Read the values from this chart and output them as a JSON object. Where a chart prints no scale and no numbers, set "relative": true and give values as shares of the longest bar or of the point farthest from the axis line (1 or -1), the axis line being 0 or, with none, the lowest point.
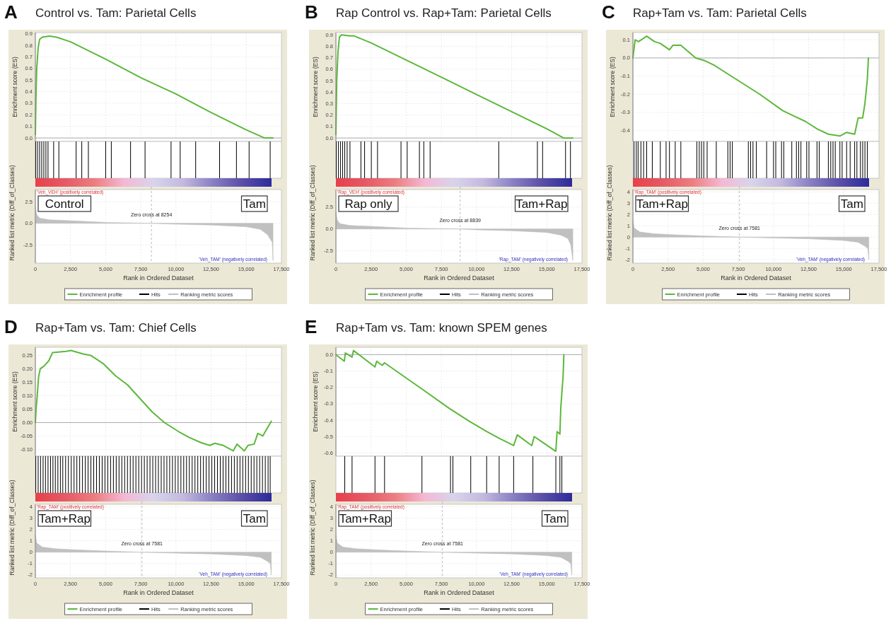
{
  "chart_data": [
    {
      "type": "line",
      "title": "Control vs. Tam: Parietal Cells",
      "annotations": [
        "A"
      ],
      "ylabel": "Enrichment score (ES)",
      "xlim": [
        0,
        17500
      ],
      "xticks": [
        0,
        2500,
        5000,
        7500,
        10000,
        12500,
        15000,
        17500
      ],
      "ylim": [
        -0.03,
        0.91
      ],
      "yticks": [
        {
          "value": 0,
          "label": "0.0"
        },
        0.1,
        0.2,
        0.3,
        0.4,
        0.5,
        0.6,
        0.7,
        0.8,
        0.9
      ],
      "grid": true,
      "tick_labels": "y",
      "legend": "bottom",
      "ref_lines": [
        {
          "axis": "y",
          "value": 0
        }
      ],
      "series": [
        {
          "name": "Enrichment profile",
          "color": "#5cb83a",
          "x": [
            0,
            50,
            100,
            200,
            300,
            500,
            1000,
            1500,
            2500,
            5000,
            7500,
            10000,
            12500,
            15000,
            16300,
            16900
          ],
          "values": [
            0.03,
            0.4,
            0.6,
            0.78,
            0.85,
            0.87,
            0.88,
            0.87,
            0.83,
            0.68,
            0.52,
            0.38,
            0.22,
            0.07,
            0.0,
            0.0
          ]
        }
      ]
    },
    {
      "type": "bar",
      "relative": true,
      "xlim": [
        0,
        17500
      ],
      "tick_labels": false,
      "legend": "bottom",
      "series": [
        {
          "name": "Hits",
          "color": "#000000",
          "x": [
            20,
            150,
            300,
            450,
            600,
            750,
            900,
            1300,
            1670,
            2900,
            3300,
            3770,
            5000,
            5400,
            6770,
            7800,
            9650,
            10300,
            11400,
            13100,
            14300,
            15200,
            16700
          ],
          "values": [
            1,
            1,
            1,
            1,
            1,
            1,
            1,
            1,
            1,
            1,
            1,
            1,
            1,
            1,
            1,
            1,
            1,
            1,
            1,
            1,
            1,
            1,
            1
          ]
        }
      ]
    },
    {
      "type": "area",
      "xlabel": "Rank in Ordered Dataset",
      "ylabel": "Ranked list metric (Diff_of_Classes)",
      "xlim": [
        0,
        17500
      ],
      "xticks": [
        0,
        {
          "value": 2500,
          "label": "2,500"
        },
        {
          "value": 5000,
          "label": "5,000"
        },
        {
          "value": 7500,
          "label": "7,500"
        },
        {
          "value": 10000,
          "label": "10,000"
        },
        {
          "value": 12500,
          "label": "12,500"
        },
        {
          "value": 15000,
          "label": "15,000"
        },
        {
          "value": 17500,
          "label": "17,500"
        }
      ],
      "ylim": [
        -4.6,
        3.9
      ],
      "yticks": [
        {
          "value": -2.5,
          "label": "-2.5"
        },
        {
          "value": 0,
          "label": "0.0"
        },
        2.5
      ],
      "grid": true,
      "legend": "bottom",
      "ref_lines": [
        {
          "axis": "x",
          "value": 8254,
          "label": "Zero cross at 8254",
          "line_style": "dashed"
        }
      ],
      "annotations": [
        "Control",
        "Tam",
        "'Veh_VEH' (positively correlated)",
        "'Veh_TAM' (negatively correlated)"
      ],
      "series": [
        {
          "name": "Ranking metric scores",
          "color": "#c0c0c0",
          "x": [
            0,
            100,
            300,
            1000,
            2500,
            5000,
            8254,
            10000,
            12500,
            15000,
            16000,
            16500,
            16850,
            16900
          ],
          "values": [
            2.0,
            1.0,
            0.6,
            0.4,
            0.3,
            0.1,
            0,
            -0.1,
            -0.2,
            -0.4,
            -0.7,
            -1.3,
            -2.2,
            -4.3
          ]
        }
      ]
    },
    {
      "type": "line",
      "title": "Rap Control vs. Rap+Tam: Parietal Cells",
      "annotations": [
        "B"
      ],
      "ylabel": "Enrichment score (ES)",
      "xlim": [
        0,
        17500
      ],
      "xticks": [
        0,
        2500,
        5000,
        7500,
        10000,
        12500,
        15000,
        17500
      ],
      "ylim": [
        -0.03,
        0.92
      ],
      "yticks": [
        {
          "value": 0,
          "label": "0.0"
        },
        0.1,
        0.2,
        0.3,
        0.4,
        0.5,
        0.6,
        0.7,
        0.8,
        0.9
      ],
      "grid": true,
      "tick_labels": "y",
      "legend": "bottom",
      "ref_lines": [
        {
          "axis": "y",
          "value": 0
        }
      ],
      "series": [
        {
          "name": "Enrichment profile",
          "color": "#5cb83a",
          "x": [
            0,
            60,
            150,
            250,
            400,
            1000,
            1300,
            2500,
            5000,
            7500,
            10000,
            12500,
            15000,
            16200,
            16850
          ],
          "values": [
            0.03,
            0.5,
            0.75,
            0.88,
            0.9,
            0.89,
            0.89,
            0.83,
            0.68,
            0.53,
            0.38,
            0.23,
            0.08,
            0.0,
            0.0
          ]
        }
      ]
    },
    {
      "type": "bar",
      "relative": true,
      "xlim": [
        0,
        17500
      ],
      "tick_labels": false,
      "legend": "bottom",
      "series": [
        {
          "name": "Hits",
          "color": "#000000",
          "x": [
            30,
            180,
            330,
            480,
            630,
            800,
            1000,
            1780,
            2040,
            2520,
            2960,
            4630,
            5070,
            5940,
            6250,
            6700,
            11580,
            14330,
            14700,
            16330,
            16680
          ],
          "values": [
            1,
            1,
            1,
            1,
            1,
            1,
            1,
            1,
            1,
            1,
            1,
            1,
            1,
            1,
            1,
            1,
            1,
            1,
            1,
            1,
            1
          ]
        }
      ]
    },
    {
      "type": "area",
      "xlabel": "Rank in Ordered Dataset",
      "ylabel": "Ranked list metric (Diff_of_Classes)",
      "xlim": [
        0,
        17500
      ],
      "xticks": [
        0,
        {
          "value": 2500,
          "label": "2,500"
        },
        {
          "value": 5000,
          "label": "5,000"
        },
        {
          "value": 7500,
          "label": "7,500"
        },
        {
          "value": 10000,
          "label": "10,000"
        },
        {
          "value": 12500,
          "label": "12,500"
        },
        {
          "value": 15000,
          "label": "15,000"
        },
        {
          "value": 17500,
          "label": "17,500"
        }
      ],
      "ylim": [
        -3.9,
        4.5
      ],
      "yticks": [
        {
          "value": -2.5,
          "label": "-2.5"
        },
        {
          "value": 0,
          "label": "0.0"
        },
        2.5
      ],
      "grid": true,
      "legend": "bottom",
      "ref_lines": [
        {
          "axis": "x",
          "value": 8839,
          "label": "Zero cross at 8839",
          "line_style": "dashed"
        }
      ],
      "annotations": [
        "Rap only",
        "Tam+Rap",
        "'Rap_VEH' (positively correlated)",
        "'Rap_TAM' (negatively correlated)"
      ],
      "series": [
        {
          "name": "Ranking metric scores",
          "color": "#c0c0c0",
          "x": [
            0,
            100,
            300,
            1000,
            2500,
            5000,
            8839,
            10000,
            12500,
            15000,
            16000,
            16500,
            16700,
            16850
          ],
          "values": [
            2.0,
            1.0,
            0.6,
            0.4,
            0.3,
            0.1,
            0,
            -0.1,
            -0.2,
            -0.4,
            -0.7,
            -1.1,
            -1.8,
            -3.6
          ]
        }
      ]
    },
    {
      "type": "line",
      "title": "Rap+Tam vs. Tam: Parietal Cells",
      "annotations": [
        "C"
      ],
      "ylabel": "Enrichment score (ES)",
      "xlim": [
        0,
        17500
      ],
      "xticks": [
        0,
        2500,
        5000,
        7500,
        10000,
        12500,
        15000,
        17500
      ],
      "ylim": [
        -0.46,
        0.14
      ],
      "yticks": [
        -0.4,
        -0.3,
        -0.2,
        -0.1,
        {
          "value": 0,
          "label": "0.0"
        },
        0.1
      ],
      "grid": true,
      "tick_labels": "y",
      "legend": "bottom",
      "ref_lines": [
        {
          "axis": "y",
          "value": 0
        }
      ],
      "series": [
        {
          "name": "Enrichment profile",
          "color": "#5cb83a",
          "x": [
            0,
            160,
            400,
            980,
            1540,
            1950,
            2600,
            2850,
            3170,
            3410,
            4470,
            5120,
            5770,
            7400,
            9020,
            10650,
            11460,
            12280,
            13090,
            13900,
            14720,
            15200,
            15770,
            16020,
            16340,
            16500,
            16670,
            16750
          ],
          "values": [
            0.0,
            0.1,
            0.09,
            0.12,
            0.09,
            0.08,
            0.045,
            0.07,
            0.07,
            0.07,
            0.0,
            -0.015,
            -0.04,
            -0.12,
            -0.2,
            -0.29,
            -0.32,
            -0.35,
            -0.39,
            -0.42,
            -0.43,
            -0.41,
            -0.42,
            -0.33,
            -0.33,
            -0.25,
            -0.12,
            0.0
          ]
        }
      ]
    },
    {
      "type": "bar",
      "relative": true,
      "xlim": [
        0,
        17500
      ],
      "tick_labels": false,
      "legend": "bottom",
      "series": [
        {
          "name": "Hits",
          "color": "#000000",
          "x": [
            80,
            240,
            370,
            570,
            760,
            980,
            1380,
            1950,
            2360,
            2600,
            3010,
            3410,
            4550,
            4720,
            4880,
            5040,
            5280,
            5930,
            6750,
            6910,
            7070,
            8210,
            8370,
            8540,
            8780,
            9510,
            10000,
            10160,
            10570,
            10730,
            11300,
            11630,
            11790,
            11950,
            12360,
            12520,
            13090,
            13250,
            13900,
            14070,
            14230,
            14390,
            14720,
            14880,
            15200,
            15450,
            15770,
            15930,
            16180,
            16340,
            16500,
            16670
          ],
          "values": [
            1,
            1,
            1,
            1,
            1,
            1,
            1,
            1,
            1,
            1,
            1,
            1,
            1,
            1,
            1,
            1,
            1,
            1,
            1,
            1,
            1,
            1,
            1,
            1,
            1,
            1,
            1,
            1,
            1,
            1,
            1,
            1,
            1,
            1,
            1,
            1,
            1,
            1,
            1,
            1,
            1,
            1,
            1,
            1,
            1,
            1,
            1,
            1,
            1,
            1,
            1,
            1
          ]
        }
      ]
    },
    {
      "type": "area",
      "xlabel": "Rank in Ordered Dataset",
      "ylabel": "Ranked list metric (Diff_of_Classes)",
      "xlim": [
        0,
        17500
      ],
      "xticks": [
        0,
        {
          "value": 2500,
          "label": "2,500"
        },
        {
          "value": 5000,
          "label": "5,000"
        },
        {
          "value": 7500,
          "label": "7,500"
        },
        {
          "value": 10000,
          "label": "10,000"
        },
        {
          "value": 12500,
          "label": "12,500"
        },
        {
          "value": 15000,
          "label": "15,000"
        },
        {
          "value": 17500,
          "label": "17,500"
        }
      ],
      "ylim": [
        -2.3,
        4.2
      ],
      "yticks": [
        -2,
        -1,
        0,
        1,
        2,
        3,
        4
      ],
      "grid": true,
      "legend": "bottom",
      "ref_lines": [
        {
          "axis": "x",
          "value": 7581,
          "label": "Zero cross at 7581",
          "line_style": "dashed"
        }
      ],
      "annotations": [
        "Tam+Rap",
        "Tam",
        "'Rap_TAM' (positively correlated)",
        "'Veh_TAM' (negatively correlated)"
      ],
      "series": [
        {
          "name": "Ranking metric scores",
          "color": "#c0c0c0",
          "x": [
            0,
            100,
            500,
            1500,
            3000,
            5000,
            7581,
            10000,
            12500,
            15000,
            16000,
            16500,
            16700,
            16780
          ],
          "values": [
            1.5,
            0.8,
            0.45,
            0.3,
            0.2,
            0.1,
            0,
            -0.08,
            -0.15,
            -0.3,
            -0.45,
            -0.8,
            -1.0,
            -2.0
          ]
        }
      ]
    },
    {
      "type": "line",
      "title": "Rap+Tam vs. Tam: Chief Cells",
      "annotations": [
        "D"
      ],
      "ylabel": "Enrichment score (ES)",
      "xlim": [
        0,
        17500
      ],
      "xticks": [
        0,
        2500,
        5000,
        7500,
        10000,
        12500,
        15000,
        17500
      ],
      "ylim": [
        -0.125,
        0.28
      ],
      "yticks": [
        {
          "value": -0.1,
          "label": "-0.10"
        },
        {
          "value": -0.05,
          "label": "-0.05"
        },
        {
          "value": 0,
          "label": "0.00"
        },
        {
          "value": 0.05,
          "label": "0.05"
        },
        {
          "value": 0.1,
          "label": "0.10"
        },
        0.15,
        {
          "value": 0.2,
          "label": "0.20"
        },
        0.25
      ],
      "grid": true,
      "tick_labels": "y",
      "legend": "bottom",
      "ref_lines": [
        {
          "axis": "y",
          "value": 0
        }
      ],
      "series": [
        {
          "name": "Enrichment profile",
          "color": "#5cb83a",
          "x": [
            0,
            50,
            120,
            230,
            350,
            610,
            960,
            1220,
            2190,
            2530,
            3410,
            3930,
            4810,
            5680,
            6560,
            7430,
            8300,
            9180,
            10230,
            10930,
            11800,
            12410,
            12760,
            13370,
            14070,
            14340,
            14860,
            15120,
            15560,
            15820,
            16170,
            16780
          ],
          "values": [
            0,
            0.05,
            0.09,
            0.17,
            0.2,
            0.21,
            0.23,
            0.26,
            0.265,
            0.268,
            0.255,
            0.25,
            0.22,
            0.175,
            0.14,
            0.09,
            0.04,
            0.0,
            -0.035,
            -0.055,
            -0.075,
            -0.085,
            -0.077,
            -0.085,
            -0.105,
            -0.08,
            -0.105,
            -0.085,
            -0.08,
            -0.04,
            -0.05,
            0.005
          ]
        }
      ]
    },
    {
      "type": "bar",
      "relative": true,
      "xlim": [
        0,
        17500
      ],
      "tick_labels": false,
      "legend": "bottom",
      "series": [
        {
          "name": "Hits",
          "color": "#000000",
          "x": [
            30,
            200,
            370,
            550,
            720,
            900,
            1080,
            1250,
            1420,
            1600,
            1780,
            1950,
            2150,
            2350,
            2550,
            2750,
            2950,
            3150,
            3350,
            3550,
            3750,
            3950,
            4150,
            4350,
            4550,
            4750,
            4950,
            5150,
            5350,
            5550,
            5750,
            5950,
            6150,
            6350,
            6550,
            6750,
            6950,
            7150,
            7350,
            7550,
            7750,
            7950,
            8150,
            8350,
            8550,
            8750,
            8950,
            9150,
            9350,
            9550,
            9750,
            9950,
            10150,
            10350,
            10550,
            10750,
            10950,
            11150,
            11350,
            11550,
            11750,
            11950,
            12150,
            12350,
            12550,
            12750,
            12950,
            13150,
            13350,
            13550,
            13750,
            13950,
            14150,
            14350,
            14550,
            14750,
            14950,
            15150,
            15350,
            15550,
            15750,
            15950,
            16150,
            16350,
            16550,
            16700
          ],
          "values": [
            1,
            1,
            1,
            1,
            1,
            1,
            1,
            1,
            1,
            1,
            1,
            1,
            1,
            1,
            1,
            1,
            1,
            1,
            1,
            1,
            1,
            1,
            1,
            1,
            1,
            1,
            1,
            1,
            1,
            1,
            1,
            1,
            1,
            1,
            1,
            1,
            1,
            1,
            1,
            1,
            1,
            1,
            1,
            1,
            1,
            1,
            1,
            1,
            1,
            1,
            1,
            1,
            1,
            1,
            1,
            1,
            1,
            1,
            1,
            1,
            1,
            1,
            1,
            1,
            1,
            1,
            1,
            1,
            1,
            1,
            1,
            1,
            1,
            1,
            1,
            1,
            1,
            1,
            1,
            1,
            1,
            1,
            1,
            1,
            1,
            1
          ]
        }
      ]
    },
    {
      "type": "area",
      "xlabel": "Rank in Ordered Dataset",
      "ylabel": "Ranked list metric (Diff_of_Classes)",
      "xlim": [
        0,
        17500
      ],
      "xticks": [
        0,
        {
          "value": 2500,
          "label": "2,500"
        },
        {
          "value": 5000,
          "label": "5,000"
        },
        {
          "value": 7500,
          "label": "7,500"
        },
        {
          "value": 10000,
          "label": "10,000"
        },
        {
          "value": 12500,
          "label": "12,500"
        },
        {
          "value": 15000,
          "label": "15,000"
        },
        {
          "value": 17500,
          "label": "17,500"
        }
      ],
      "ylim": [
        -2.25,
        4.2
      ],
      "yticks": [
        -2,
        -1,
        0,
        1,
        2,
        3,
        4
      ],
      "grid": true,
      "legend": "bottom",
      "ref_lines": [
        {
          "axis": "x",
          "value": 7581,
          "label": "Zero cross at 7581",
          "line_style": "dashed"
        }
      ],
      "annotations": [
        "Tam+Rap",
        "Tam",
        "'Rap_TAM' (positively correlated)",
        "'Veh_TAM' (negatively correlated)"
      ],
      "series": [
        {
          "name": "Ranking metric scores",
          "color": "#c0c0c0",
          "x": [
            0,
            100,
            500,
            1500,
            3000,
            5000,
            7581,
            10000,
            12500,
            15000,
            16000,
            16500,
            16700,
            16780
          ],
          "values": [
            1.5,
            0.8,
            0.45,
            0.3,
            0.2,
            0.1,
            0,
            -0.08,
            -0.15,
            -0.3,
            -0.45,
            -0.8,
            -1.0,
            -2.0
          ]
        }
      ]
    },
    {
      "type": "line",
      "title": "Rap+Tam vs. Tam: known SPEM genes",
      "annotations": [
        "E"
      ],
      "ylabel": "Enrichment score (ES)",
      "xlim": [
        0,
        17500
      ],
      "xticks": [
        0,
        2500,
        5000,
        7500,
        10000,
        12500,
        15000,
        17500
      ],
      "ylim": [
        -0.62,
        0.045
      ],
      "yticks": [
        -0.6,
        -0.5,
        -0.4,
        -0.3,
        -0.2,
        -0.1,
        {
          "value": 0,
          "label": "0.0"
        }
      ],
      "grid": true,
      "tick_labels": "y",
      "legend": "bottom",
      "ref_lines": [
        {
          "axis": "y",
          "value": 0
        }
      ],
      "series": [
        {
          "name": "Enrichment profile",
          "color": "#5cb83a",
          "x": [
            0,
            600,
            670,
            1150,
            1250,
            2780,
            2900,
            3290,
            3460,
            6120,
            8100,
            9550,
            10750,
            11610,
            12640,
            12900,
            13930,
            14100,
            15640,
            15730,
            15930,
            15990,
            16070,
            16160,
            16210
          ],
          "values": [
            0,
            -0.04,
            0.01,
            -0.015,
            0.025,
            -0.075,
            -0.04,
            -0.065,
            -0.05,
            -0.21,
            -0.33,
            -0.41,
            -0.47,
            -0.51,
            -0.555,
            -0.49,
            -0.555,
            -0.5,
            -0.59,
            -0.47,
            -0.485,
            -0.33,
            -0.23,
            -0.13,
            0.0
          ]
        }
      ]
    },
    {
      "type": "bar",
      "relative": true,
      "xlim": [
        0,
        17500
      ],
      "tick_labels": false,
      "legend": "bottom",
      "series": [
        {
          "name": "Hits",
          "color": "#000000",
          "x": [
            630,
            1150,
            2780,
            3460,
            6120,
            8150,
            8320,
            9590,
            10720,
            11610,
            12640,
            14010,
            15640,
            15930,
            16070
          ],
          "values": [
            1,
            1,
            1,
            1,
            1,
            1,
            1,
            1,
            1,
            1,
            1,
            1,
            1,
            1,
            1
          ]
        }
      ]
    },
    {
      "type": "area",
      "xlabel": "Rank in Ordered Dataset",
      "ylabel": "Ranked list metric (Diff_of_Classes)",
      "xlim": [
        0,
        17500
      ],
      "xticks": [
        0,
        {
          "value": 2500,
          "label": "2,500"
        },
        {
          "value": 5000,
          "label": "5,000"
        },
        {
          "value": 7500,
          "label": "7,500"
        },
        {
          "value": 10000,
          "label": "10,000"
        },
        {
          "value": 12500,
          "label": "12,500"
        },
        {
          "value": 15000,
          "label": "15,000"
        },
        {
          "value": 17500,
          "label": "17,500"
        }
      ],
      "ylim": [
        -2.25,
        4.2
      ],
      "yticks": [
        -2,
        -1,
        0,
        1,
        2,
        3,
        4
      ],
      "grid": true,
      "legend": "bottom",
      "ref_lines": [
        {
          "axis": "x",
          "value": 7581,
          "label": "Zero cross at 7581",
          "line_style": "dashed"
        }
      ],
      "annotations": [
        "Tam+Rap",
        "Tam",
        "'Rap_TAM' (positively correlated)",
        "'Veh_TAM' (negatively correlated)"
      ],
      "series": [
        {
          "name": "Ranking metric scores",
          "color": "#c0c0c0",
          "x": [
            0,
            100,
            500,
            1500,
            3000,
            5000,
            7581,
            10000,
            12500,
            15000,
            16000,
            16500,
            16700,
            16780
          ],
          "values": [
            1.5,
            0.8,
            0.45,
            0.3,
            0.2,
            0.1,
            0,
            -0.08,
            -0.15,
            -0.3,
            -0.45,
            -0.8,
            -1.0,
            -2.0
          ]
        }
      ]
    }
  ]
}
